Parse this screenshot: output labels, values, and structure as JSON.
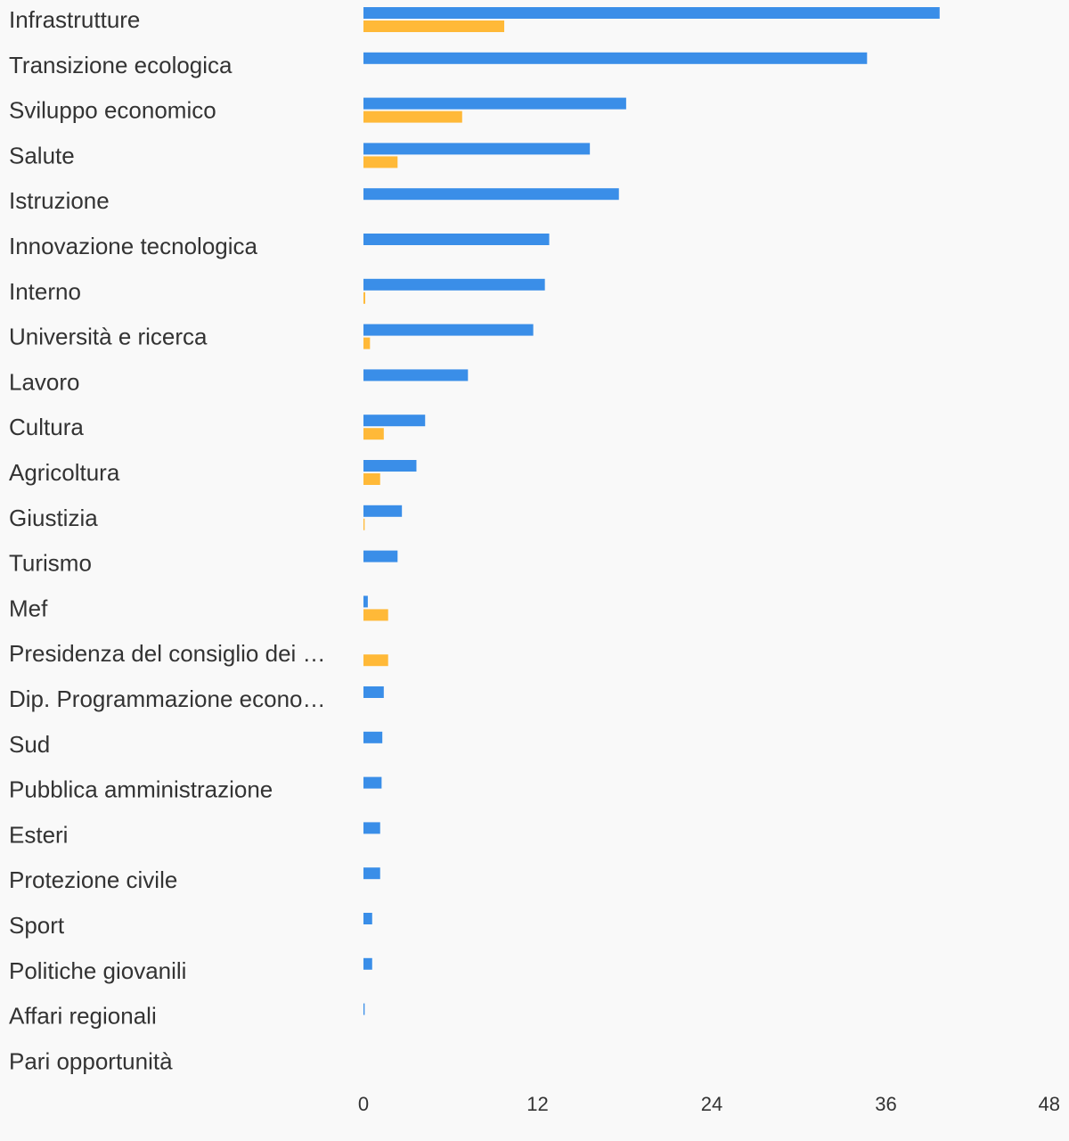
{
  "chart_data": {
    "type": "bar",
    "orientation": "horizontal",
    "categories": [
      "Infrastrutture",
      "Transizione ecologica",
      "Sviluppo economico",
      "Salute",
      "Istruzione",
      "Innovazione tecnologica",
      "Interno",
      "Università e ricerca",
      "Lavoro",
      "Cultura",
      "Agricoltura",
      "Giustizia",
      "Turismo",
      "Mef",
      "Presidenza del consiglio dei …",
      "Dip. Programmazione econo…",
      "Sud",
      "Pubblica amministrazione",
      "Esteri",
      "Protezione civile",
      "Sport",
      "Politiche giovanili",
      "Affari regionali",
      "Pari opportunità"
    ],
    "series": [
      {
        "color": "#3a8ee8",
        "values": [
          39.7,
          34.7,
          18.1,
          15.6,
          17.6,
          12.8,
          12.5,
          11.7,
          7.2,
          4.25,
          3.65,
          2.65,
          2.35,
          0.3,
          0,
          1.4,
          1.3,
          1.25,
          1.15,
          1.15,
          0.6,
          0.6,
          0.08,
          0
        ]
      },
      {
        "color": "#ffb938",
        "values": [
          9.7,
          0,
          6.8,
          2.35,
          0,
          0,
          0.12,
          0.45,
          0,
          1.4,
          1.15,
          0.08,
          0,
          1.7,
          1.7,
          0,
          0,
          0,
          0,
          0,
          0,
          0,
          0,
          0
        ]
      }
    ],
    "xlim": [
      0,
      48
    ],
    "xticks": [
      "0",
      "12",
      "24",
      "36",
      "48"
    ],
    "grid": false,
    "legend": "none"
  }
}
